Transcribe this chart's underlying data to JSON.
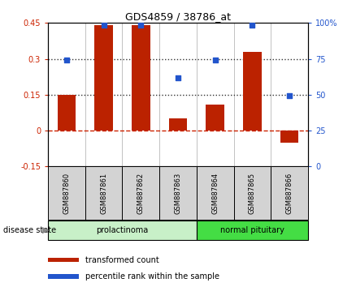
{
  "title": "GDS4859 / 38786_at",
  "samples": [
    "GSM887860",
    "GSM887861",
    "GSM887862",
    "GSM887863",
    "GSM887864",
    "GSM887865",
    "GSM887866"
  ],
  "bar_values": [
    0.15,
    0.44,
    0.44,
    0.05,
    0.11,
    0.33,
    -0.05
  ],
  "dot_values_left_scale": [
    0.295,
    0.44,
    0.44,
    0.22,
    0.295,
    0.44,
    0.145
  ],
  "bar_color": "#bb2200",
  "dot_color": "#2255cc",
  "ylim_left": [
    -0.15,
    0.45
  ],
  "ylim_right": [
    0,
    100
  ],
  "yticks_left": [
    -0.15,
    0,
    0.15,
    0.3,
    0.45
  ],
  "yticks_left_labels": [
    "-0.15",
    "0",
    "0.15",
    "0.3",
    "0.45"
  ],
  "yticks_right": [
    0,
    25,
    50,
    75,
    100
  ],
  "yticks_right_labels": [
    "0",
    "25",
    "50",
    "75",
    "100%"
  ],
  "hlines_dotted": [
    0.15,
    0.3
  ],
  "hline_zero_color": "#cc2200",
  "hline_dotted_color": "#333333",
  "groups": [
    {
      "label": "prolactinoma",
      "start": 0,
      "end": 3,
      "color": "#c8f0c8"
    },
    {
      "label": "normal pituitary",
      "start": 4,
      "end": 6,
      "color": "#44dd44"
    }
  ],
  "disease_state_label": "disease state",
  "legend_items": [
    {
      "label": "transformed count",
      "color": "#bb2200"
    },
    {
      "label": "percentile rank within the sample",
      "color": "#2255cc"
    }
  ],
  "bg_color": "#ffffff",
  "sample_box_color": "#d3d3d3",
  "tick_label_color_left": "#cc2200",
  "tick_label_color_right": "#2255cc",
  "title_fontsize": 9,
  "axis_fontsize": 7,
  "legend_fontsize": 7,
  "sample_fontsize": 6
}
